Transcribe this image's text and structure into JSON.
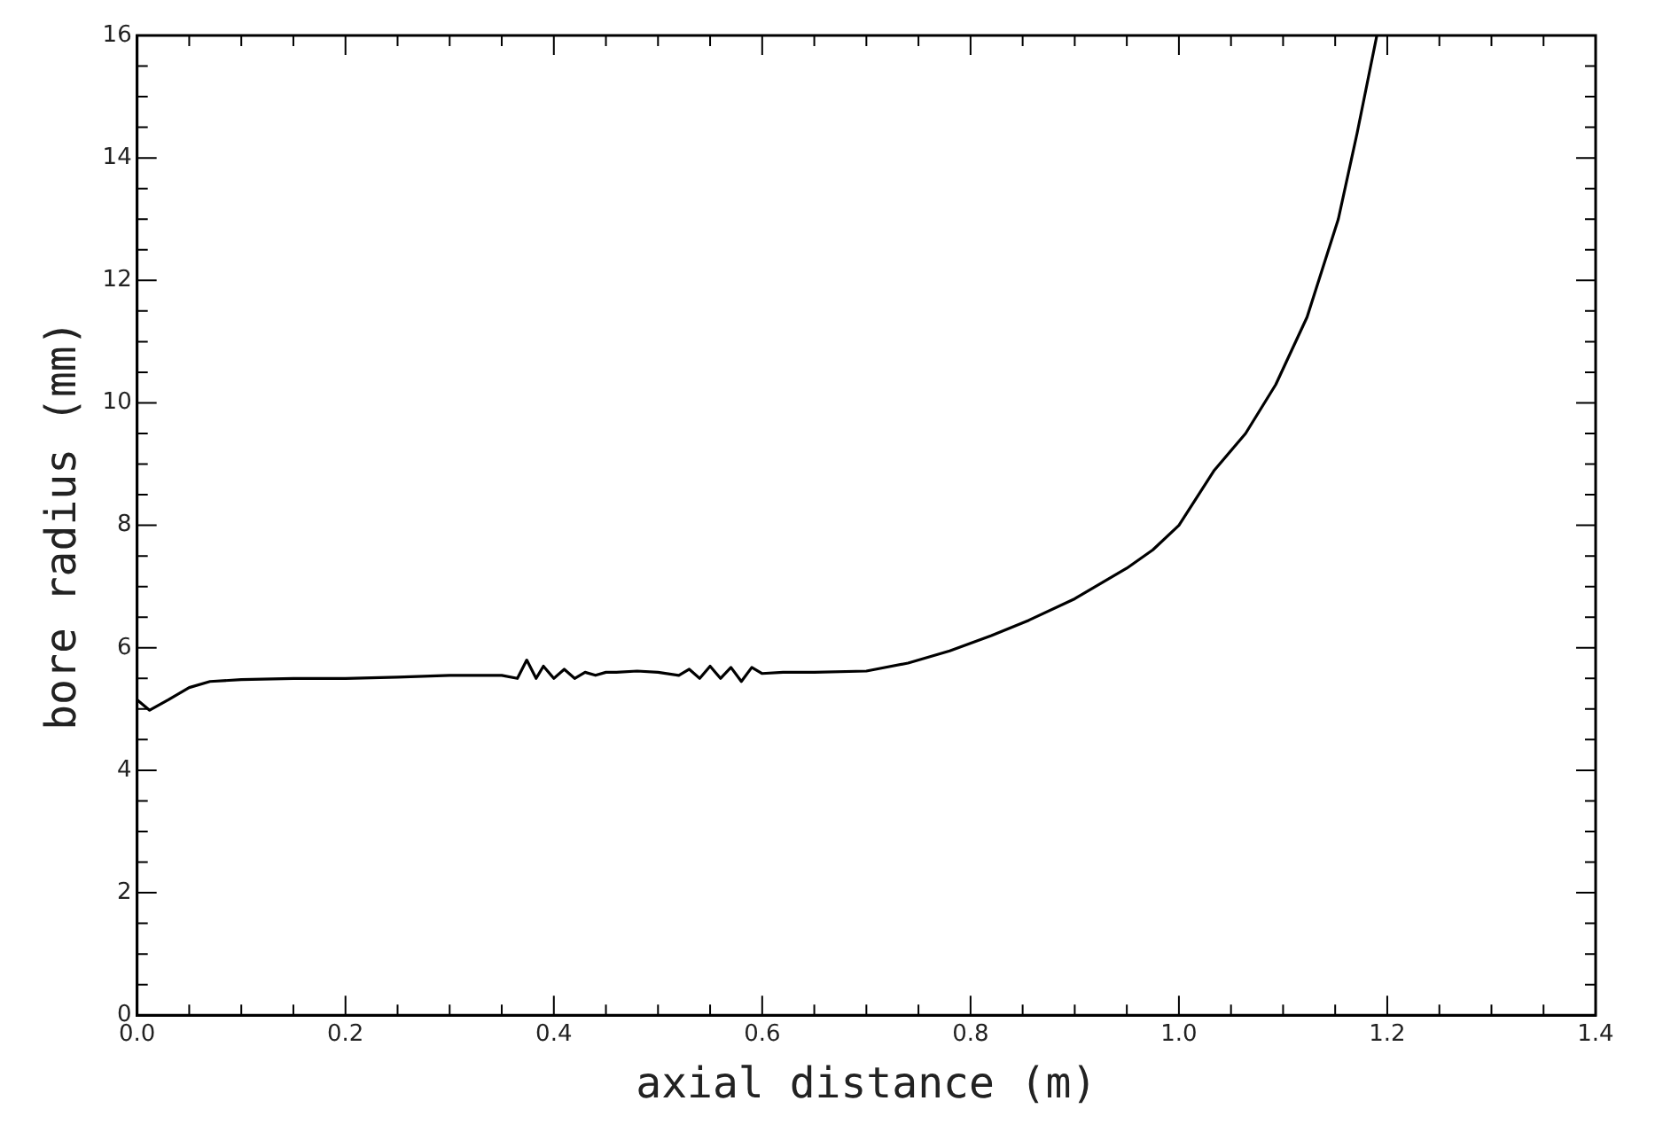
{
  "chart_data": {
    "type": "line",
    "xlabel": "axial distance (m)",
    "ylabel": "bore radius (mm)",
    "x": [
      0,
      0.012,
      0.03,
      0.05,
      0.07,
      0.1,
      0.15,
      0.2,
      0.25,
      0.3,
      0.35,
      0.365,
      0.374,
      0.383,
      0.39,
      0.4,
      0.41,
      0.42,
      0.43,
      0.44,
      0.45,
      0.46,
      0.48,
      0.5,
      0.52,
      0.53,
      0.54,
      0.55,
      0.56,
      0.57,
      0.58,
      0.59,
      0.6,
      0.62,
      0.65,
      0.7,
      0.74,
      0.78,
      0.82,
      0.856,
      0.9,
      0.95,
      0.975,
      1.0,
      1.034,
      1.064,
      1.093,
      1.123,
      1.153,
      1.171,
      1.19
    ],
    "series": [
      {
        "color": "#000000",
        "values": [
          5.15,
          4.98,
          5.15,
          5.35,
          5.45,
          5.48,
          5.5,
          5.5,
          5.52,
          5.55,
          5.55,
          5.5,
          5.8,
          5.5,
          5.7,
          5.5,
          5.65,
          5.5,
          5.6,
          5.55,
          5.6,
          5.6,
          5.62,
          5.6,
          5.55,
          5.65,
          5.5,
          5.7,
          5.5,
          5.68,
          5.45,
          5.68,
          5.58,
          5.6,
          5.6,
          5.62,
          5.75,
          5.95,
          6.2,
          6.45,
          6.8,
          7.3,
          7.6,
          8.0,
          8.9,
          9.5,
          10.3,
          11.4,
          13.0,
          14.4,
          16.0
        ]
      }
    ],
    "xlim": [
      0,
      1.4
    ],
    "ylim": [
      0,
      16
    ],
    "xticks": [
      {
        "value": 0,
        "label": "0.0"
      },
      {
        "value": 0.05,
        "label": null
      },
      {
        "value": 0.1,
        "label": null
      },
      {
        "value": 0.15,
        "label": null
      },
      0.2,
      {
        "value": 0.25,
        "label": null
      },
      {
        "value": 0.3,
        "label": null
      },
      {
        "value": 0.35,
        "label": null
      },
      0.4,
      {
        "value": 0.45,
        "label": null
      },
      {
        "value": 0.5,
        "label": null
      },
      {
        "value": 0.55,
        "label": null
      },
      0.6,
      {
        "value": 0.65,
        "label": null
      },
      {
        "value": 0.7,
        "label": null
      },
      {
        "value": 0.75,
        "label": null
      },
      0.8,
      {
        "value": 0.85,
        "label": null
      },
      {
        "value": 0.9,
        "label": null
      },
      {
        "value": 0.95,
        "label": null
      },
      {
        "value": 1,
        "label": "1.0"
      },
      {
        "value": 1.05,
        "label": null
      },
      {
        "value": 1.1,
        "label": null
      },
      {
        "value": 1.15,
        "label": null
      },
      1.2,
      {
        "value": 1.25,
        "label": null
      },
      {
        "value": 1.3,
        "label": null
      },
      {
        "value": 1.35,
        "label": null
      },
      1.4
    ],
    "yticks": [
      0,
      {
        "value": 0.5,
        "label": null
      },
      {
        "value": 1,
        "label": null
      },
      {
        "value": 1.5,
        "label": null
      },
      2,
      {
        "value": 2.5,
        "label": null
      },
      {
        "value": 3,
        "label": null
      },
      {
        "value": 3.5,
        "label": null
      },
      4,
      {
        "value": 4.5,
        "label": null
      },
      {
        "value": 5,
        "label": null
      },
      {
        "value": 5.5,
        "label": null
      },
      6,
      {
        "value": 6.5,
        "label": null
      },
      {
        "value": 7,
        "label": null
      },
      {
        "value": 7.5,
        "label": null
      },
      8,
      {
        "value": 8.5,
        "label": null
      },
      {
        "value": 9,
        "label": null
      },
      {
        "value": 9.5,
        "label": null
      },
      10,
      {
        "value": 10.5,
        "label": null
      },
      {
        "value": 11,
        "label": null
      },
      {
        "value": 11.5,
        "label": null
      },
      12,
      {
        "value": 12.5,
        "label": null
      },
      {
        "value": 13,
        "label": null
      },
      {
        "value": 13.5,
        "label": null
      },
      14,
      {
        "value": 14.5,
        "label": null
      },
      {
        "value": 15,
        "label": null
      },
      {
        "value": 15.5,
        "label": null
      },
      16
    ],
    "grid": false,
    "legend": false,
    "marker": "none",
    "line_style": "solid"
  }
}
